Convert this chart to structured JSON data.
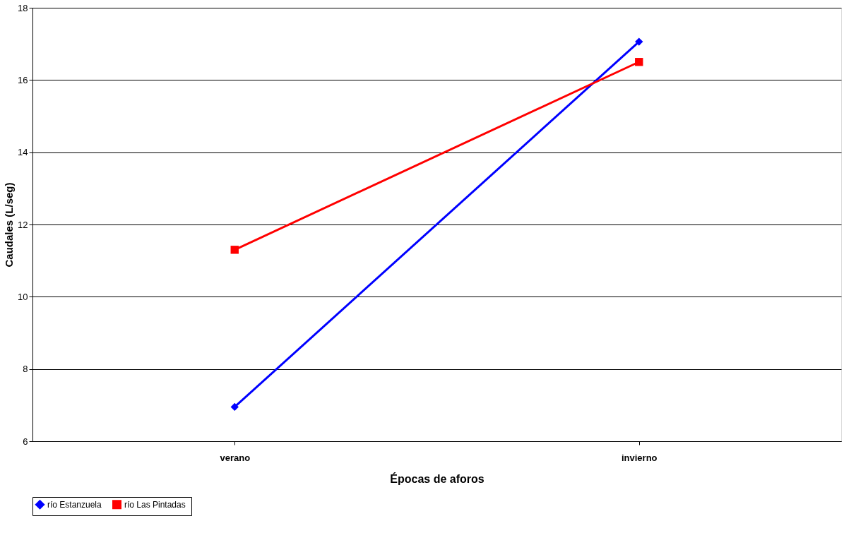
{
  "chart_data": {
    "type": "line",
    "xlabel": "Épocas de aforos",
    "ylabel": "Caudales (L/seg)",
    "categories": [
      "verano",
      "invierno"
    ],
    "series": [
      {
        "name": "río Estanzuela",
        "color": "#0000ff",
        "marker": "diamond",
        "values": [
          6.95,
          17.06
        ]
      },
      {
        "name": "río  Las Pintadas",
        "color": "#ff0000",
        "marker": "square",
        "values": [
          11.3,
          16.5
        ]
      }
    ],
    "ylim": [
      6,
      18
    ],
    "yticks": [
      6,
      8,
      10,
      12,
      14,
      16,
      18
    ],
    "grid": "y",
    "legend": "bottom",
    "line_style": "solid"
  }
}
